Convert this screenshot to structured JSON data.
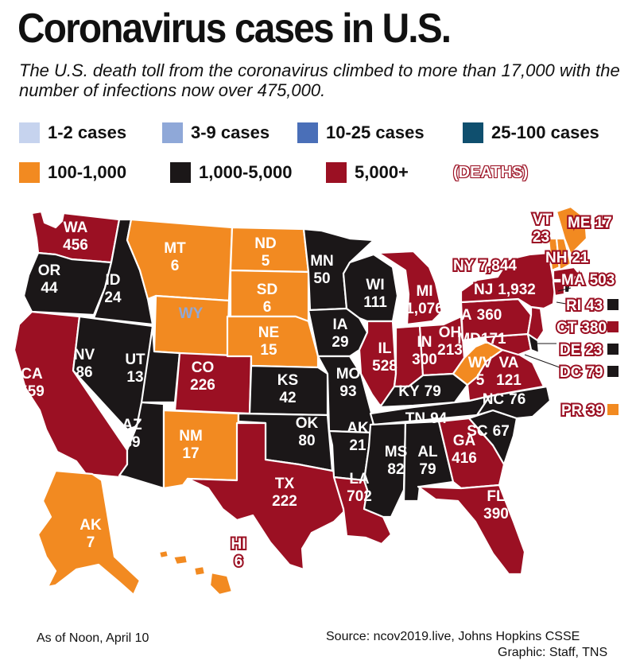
{
  "title": "Coronavirus cases in U.S.",
  "subtitle": "The U.S. death toll from the coronavirus climbed to more than 17,000 with the number of infections now over 475,000.",
  "colors": {
    "1-2": "#c6d3ee",
    "3-9": "#8fa8d8",
    "10-25": "#4a6fb8",
    "25-100": "#0f4f6e",
    "100-1000": "#f28a21",
    "1000-5000": "#1b1718",
    "5000plus": "#9b1023"
  },
  "legend": [
    {
      "label": "1-2 cases",
      "color": "#c6d3ee"
    },
    {
      "label": "3-9 cases",
      "color": "#8fa8d8"
    },
    {
      "label": "10-25 cases",
      "color": "#4a6fb8"
    },
    {
      "label": "25-100 cases",
      "color": "#0f4f6e"
    },
    {
      "label": "100-1,000",
      "color": "#f28a21"
    },
    {
      "label": "1,000-5,000",
      "color": "#1b1718"
    },
    {
      "label": "5,000+",
      "color": "#9b1023"
    }
  ],
  "deaths_label": "(DEATHS)",
  "states": [
    {
      "abbr": "WA",
      "deaths": "456",
      "category": "5000plus"
    },
    {
      "abbr": "OR",
      "deaths": "44",
      "category": "1000-5000"
    },
    {
      "abbr": "CA",
      "deaths": "559",
      "category": "5000plus"
    },
    {
      "abbr": "ID",
      "deaths": "24",
      "category": "1000-5000"
    },
    {
      "abbr": "NV",
      "deaths": "86",
      "category": "1000-5000"
    },
    {
      "abbr": "MT",
      "deaths": "6",
      "category": "100-1000"
    },
    {
      "abbr": "WY",
      "deaths": "",
      "category": "100-1000"
    },
    {
      "abbr": "UT",
      "deaths": "13",
      "category": "1000-5000"
    },
    {
      "abbr": "AZ",
      "deaths": "89",
      "category": "1000-5000"
    },
    {
      "abbr": "CO",
      "deaths": "226",
      "category": "5000plus"
    },
    {
      "abbr": "NM",
      "deaths": "17",
      "category": "100-1000"
    },
    {
      "abbr": "ND",
      "deaths": "5",
      "category": "100-1000"
    },
    {
      "abbr": "SD",
      "deaths": "6",
      "category": "100-1000"
    },
    {
      "abbr": "NE",
      "deaths": "15",
      "category": "100-1000"
    },
    {
      "abbr": "KS",
      "deaths": "42",
      "category": "1000-5000"
    },
    {
      "abbr": "OK",
      "deaths": "80",
      "category": "1000-5000"
    },
    {
      "abbr": "TX",
      "deaths": "222",
      "category": "5000plus"
    },
    {
      "abbr": "MN",
      "deaths": "50",
      "category": "1000-5000"
    },
    {
      "abbr": "IA",
      "deaths": "29",
      "category": "1000-5000"
    },
    {
      "abbr": "MO",
      "deaths": "93",
      "category": "1000-5000"
    },
    {
      "abbr": "AK",
      "deaths": "21",
      "category": "1000-5000"
    },
    {
      "abbr": "LA",
      "deaths": "702",
      "category": "5000plus"
    },
    {
      "abbr": "WI",
      "deaths": "111",
      "category": "1000-5000"
    },
    {
      "abbr": "IL",
      "deaths": "528",
      "category": "5000plus"
    },
    {
      "abbr": "MI",
      "deaths": "1,076",
      "category": "5000plus"
    },
    {
      "abbr": "IN",
      "deaths": "300",
      "category": "5000plus"
    },
    {
      "abbr": "OH",
      "deaths": "213",
      "category": "5000plus"
    },
    {
      "abbr": "KY",
      "deaths": "79",
      "category": "1000-5000"
    },
    {
      "abbr": "TN",
      "deaths": "94",
      "category": "1000-5000"
    },
    {
      "abbr": "MS",
      "deaths": "82",
      "category": "1000-5000"
    },
    {
      "abbr": "AL",
      "deaths": "79",
      "category": "1000-5000"
    },
    {
      "abbr": "GA",
      "deaths": "416",
      "category": "5000plus"
    },
    {
      "abbr": "FL",
      "deaths": "390",
      "category": "5000plus"
    },
    {
      "abbr": "SC",
      "deaths": "67",
      "category": "1000-5000"
    },
    {
      "abbr": "NC",
      "deaths": "76",
      "category": "1000-5000"
    },
    {
      "abbr": "VA",
      "deaths": "121",
      "category": "5000plus"
    },
    {
      "abbr": "WV",
      "deaths": "5",
      "category": "100-1000"
    },
    {
      "abbr": "MD",
      "deaths": "171",
      "category": "5000plus"
    },
    {
      "abbr": "PA",
      "deaths": "360",
      "category": "5000plus"
    },
    {
      "abbr": "NY",
      "deaths": "7,844",
      "category": "5000plus"
    },
    {
      "abbr": "NJ",
      "deaths": "1,932",
      "category": "5000plus"
    },
    {
      "abbr": "VT",
      "deaths": "23",
      "category": "100-1000"
    },
    {
      "abbr": "ME",
      "deaths": "17",
      "category": "100-1000"
    },
    {
      "abbr": "NH",
      "deaths": "21",
      "category": "100-1000"
    },
    {
      "abbr": "MA",
      "deaths": "503",
      "category": "5000plus"
    },
    {
      "abbr": "RI",
      "deaths": "43",
      "category": "1000-5000"
    },
    {
      "abbr": "CT",
      "deaths": "380",
      "category": "5000plus"
    },
    {
      "abbr": "DE",
      "deaths": "23",
      "category": "1000-5000"
    },
    {
      "abbr": "DC",
      "deaths": "79",
      "category": "1000-5000"
    },
    {
      "abbr": "PR",
      "deaths": "39",
      "category": "100-1000"
    },
    {
      "abbr": "AK",
      "deaths": "7",
      "category": "100-1000"
    },
    {
      "abbr": "HI",
      "deaths": "6",
      "category": "5000plus"
    }
  ],
  "footer": {
    "as_of": "As of Noon, April 10",
    "source": "Source: ncov2019.live, Johns Hopkins CSSE",
    "graphic": "Graphic: Staff, TNS"
  }
}
